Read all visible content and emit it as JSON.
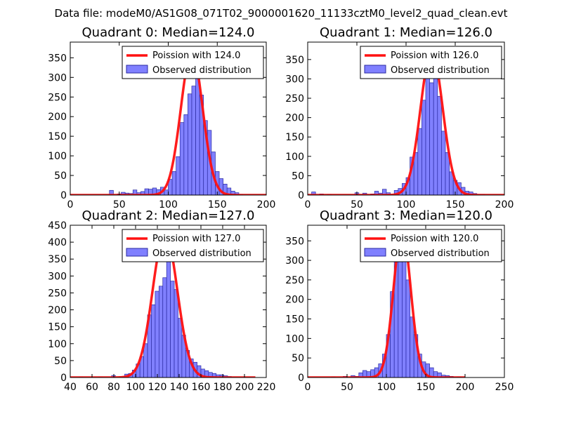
{
  "figure": {
    "suptitle": "Data file: modeM0/AS1G08_071T02_9000001620_11133cztM0_level2_quad_clean.evt",
    "colors": {
      "histogram_fill": "#8080ff",
      "histogram_edge": "#2a2aa0",
      "poisson_line": "#ff1010",
      "axes": "#000000",
      "background": "#ffffff"
    }
  },
  "chart_data": [
    {
      "type": "bar",
      "title": "Quadrant 0: Median=124.0",
      "median": 124.0,
      "xlim": [
        0,
        200
      ],
      "ylim": [
        0,
        390
      ],
      "xticks": [
        0,
        50,
        100,
        150,
        200
      ],
      "yticks": [
        0,
        50,
        100,
        150,
        200,
        250,
        300,
        350
      ],
      "legend": {
        "placement": "top-right",
        "line_label": "Poission with 124.0",
        "bar_label": "Observed distribution"
      },
      "poisson": {
        "mean": 124.0,
        "peak": 365,
        "range": [
          0,
          200
        ]
      },
      "histogram": {
        "bin_width": 4,
        "bins": [
          {
            "x": 40,
            "count": 12
          },
          {
            "x": 48,
            "count": 3
          },
          {
            "x": 52,
            "count": 7
          },
          {
            "x": 56,
            "count": 5
          },
          {
            "x": 60,
            "count": 4
          },
          {
            "x": 64,
            "count": 13
          },
          {
            "x": 68,
            "count": 6
          },
          {
            "x": 72,
            "count": 9
          },
          {
            "x": 76,
            "count": 16
          },
          {
            "x": 80,
            "count": 15
          },
          {
            "x": 84,
            "count": 18
          },
          {
            "x": 88,
            "count": 14
          },
          {
            "x": 92,
            "count": 20
          },
          {
            "x": 96,
            "count": 13
          },
          {
            "x": 100,
            "count": 40
          },
          {
            "x": 104,
            "count": 60
          },
          {
            "x": 108,
            "count": 98
          },
          {
            "x": 112,
            "count": 185
          },
          {
            "x": 116,
            "count": 205
          },
          {
            "x": 120,
            "count": 258
          },
          {
            "x": 124,
            "count": 278
          },
          {
            "x": 128,
            "count": 300
          },
          {
            "x": 132,
            "count": 255
          },
          {
            "x": 136,
            "count": 190
          },
          {
            "x": 140,
            "count": 165
          },
          {
            "x": 144,
            "count": 110
          },
          {
            "x": 148,
            "count": 60
          },
          {
            "x": 152,
            "count": 42
          },
          {
            "x": 156,
            "count": 28
          },
          {
            "x": 160,
            "count": 18
          },
          {
            "x": 164,
            "count": 10
          },
          {
            "x": 168,
            "count": 6
          },
          {
            "x": 172,
            "count": 2
          }
        ]
      }
    },
    {
      "type": "bar",
      "title": "Quadrant 1: Median=126.0",
      "median": 126.0,
      "xlim": [
        0,
        200
      ],
      "ylim": [
        0,
        395
      ],
      "xticks": [
        0,
        50,
        100,
        150,
        200
      ],
      "yticks": [
        0,
        50,
        100,
        150,
        200,
        250,
        300,
        350
      ],
      "legend": {
        "placement": "top-right",
        "line_label": "Poission with 126.0",
        "bar_label": "Observed distribution"
      },
      "poisson": {
        "mean": 126.0,
        "peak": 372,
        "range": [
          0,
          200
        ]
      },
      "histogram": {
        "bin_width": 4,
        "bins": [
          {
            "x": 4,
            "count": 8
          },
          {
            "x": 12,
            "count": 3
          },
          {
            "x": 20,
            "count": 2
          },
          {
            "x": 48,
            "count": 6
          },
          {
            "x": 56,
            "count": 5
          },
          {
            "x": 64,
            "count": 3
          },
          {
            "x": 68,
            "count": 10
          },
          {
            "x": 72,
            "count": 5
          },
          {
            "x": 76,
            "count": 15
          },
          {
            "x": 80,
            "count": 6
          },
          {
            "x": 88,
            "count": 12
          },
          {
            "x": 92,
            "count": 17
          },
          {
            "x": 96,
            "count": 30
          },
          {
            "x": 100,
            "count": 45
          },
          {
            "x": 104,
            "count": 98
          },
          {
            "x": 108,
            "count": 110
          },
          {
            "x": 112,
            "count": 172
          },
          {
            "x": 116,
            "count": 245
          },
          {
            "x": 120,
            "count": 322
          },
          {
            "x": 124,
            "count": 290
          },
          {
            "x": 128,
            "count": 335
          },
          {
            "x": 132,
            "count": 255
          },
          {
            "x": 136,
            "count": 165
          },
          {
            "x": 140,
            "count": 110
          },
          {
            "x": 144,
            "count": 60
          },
          {
            "x": 148,
            "count": 38
          },
          {
            "x": 152,
            "count": 32
          },
          {
            "x": 156,
            "count": 20
          },
          {
            "x": 160,
            "count": 10
          },
          {
            "x": 164,
            "count": 8
          },
          {
            "x": 168,
            "count": 4
          },
          {
            "x": 172,
            "count": 2
          },
          {
            "x": 176,
            "count": 2
          }
        ]
      }
    },
    {
      "type": "bar",
      "title": "Quadrant 2: Median=127.0",
      "median": 127.0,
      "xlim": [
        40,
        220
      ],
      "ylim": [
        0,
        450
      ],
      "xticks": [
        40,
        60,
        80,
        100,
        120,
        140,
        160,
        180,
        200,
        220
      ],
      "yticks": [
        0,
        50,
        100,
        150,
        200,
        250,
        300,
        350,
        400,
        450
      ],
      "legend": {
        "placement": "top-right",
        "line_label": "Poission with 127.0",
        "bar_label": "Observed distribution"
      },
      "poisson": {
        "mean": 127.0,
        "peak": 428,
        "range": [
          40,
          210
        ]
      },
      "histogram": {
        "bin_width": 3.5,
        "bins": [
          {
            "x": 48,
            "count": 2
          },
          {
            "x": 66,
            "count": 2
          },
          {
            "x": 78,
            "count": 6
          },
          {
            "x": 86,
            "count": 3
          },
          {
            "x": 90,
            "count": 10
          },
          {
            "x": 93.5,
            "count": 12
          },
          {
            "x": 97,
            "count": 22
          },
          {
            "x": 100.5,
            "count": 40
          },
          {
            "x": 104,
            "count": 62
          },
          {
            "x": 107.5,
            "count": 100
          },
          {
            "x": 111,
            "count": 185
          },
          {
            "x": 114.5,
            "count": 215
          },
          {
            "x": 118,
            "count": 255
          },
          {
            "x": 121.5,
            "count": 270
          },
          {
            "x": 125,
            "count": 295
          },
          {
            "x": 128.5,
            "count": 378
          },
          {
            "x": 132,
            "count": 285
          },
          {
            "x": 135.5,
            "count": 260
          },
          {
            "x": 139,
            "count": 175
          },
          {
            "x": 142.5,
            "count": 125
          },
          {
            "x": 146,
            "count": 80
          },
          {
            "x": 149.5,
            "count": 55
          },
          {
            "x": 153,
            "count": 45
          },
          {
            "x": 156.5,
            "count": 35
          },
          {
            "x": 160,
            "count": 25
          },
          {
            "x": 163.5,
            "count": 20
          },
          {
            "x": 167,
            "count": 15
          },
          {
            "x": 170.5,
            "count": 12
          },
          {
            "x": 174,
            "count": 8
          },
          {
            "x": 177.5,
            "count": 8
          },
          {
            "x": 181,
            "count": 5
          },
          {
            "x": 184.5,
            "count": 3
          }
        ]
      }
    },
    {
      "type": "bar",
      "title": "Quadrant 3: Median=120.0",
      "median": 120.0,
      "xlim": [
        0,
        250
      ],
      "ylim": [
        0,
        390
      ],
      "xticks": [
        0,
        50,
        100,
        150,
        200,
        250
      ],
      "yticks": [
        0,
        50,
        100,
        150,
        200,
        250,
        300,
        350
      ],
      "legend": {
        "placement": "top-right",
        "line_label": "Poission with 120.0",
        "bar_label": "Observed distribution"
      },
      "poisson": {
        "mean": 120.0,
        "peak": 375,
        "range": [
          0,
          200
        ]
      },
      "histogram": {
        "bin_width": 5,
        "bins": [
          {
            "x": 30,
            "count": 2
          },
          {
            "x": 45,
            "count": 3
          },
          {
            "x": 55,
            "count": 5
          },
          {
            "x": 60,
            "count": 3
          },
          {
            "x": 65,
            "count": 12
          },
          {
            "x": 70,
            "count": 18
          },
          {
            "x": 75,
            "count": 15
          },
          {
            "x": 80,
            "count": 20
          },
          {
            "x": 85,
            "count": 25
          },
          {
            "x": 90,
            "count": 35
          },
          {
            "x": 95,
            "count": 60
          },
          {
            "x": 100,
            "count": 110
          },
          {
            "x": 105,
            "count": 220
          },
          {
            "x": 110,
            "count": 330
          },
          {
            "x": 115,
            "count": 340
          },
          {
            "x": 120,
            "count": 365
          },
          {
            "x": 125,
            "count": 250
          },
          {
            "x": 130,
            "count": 155
          },
          {
            "x": 135,
            "count": 110
          },
          {
            "x": 140,
            "count": 60
          },
          {
            "x": 145,
            "count": 40
          },
          {
            "x": 150,
            "count": 35
          },
          {
            "x": 155,
            "count": 25
          },
          {
            "x": 160,
            "count": 15
          },
          {
            "x": 165,
            "count": 12
          },
          {
            "x": 170,
            "count": 6
          },
          {
            "x": 175,
            "count": 5
          },
          {
            "x": 180,
            "count": 3
          },
          {
            "x": 190,
            "count": 2
          }
        ]
      }
    }
  ]
}
